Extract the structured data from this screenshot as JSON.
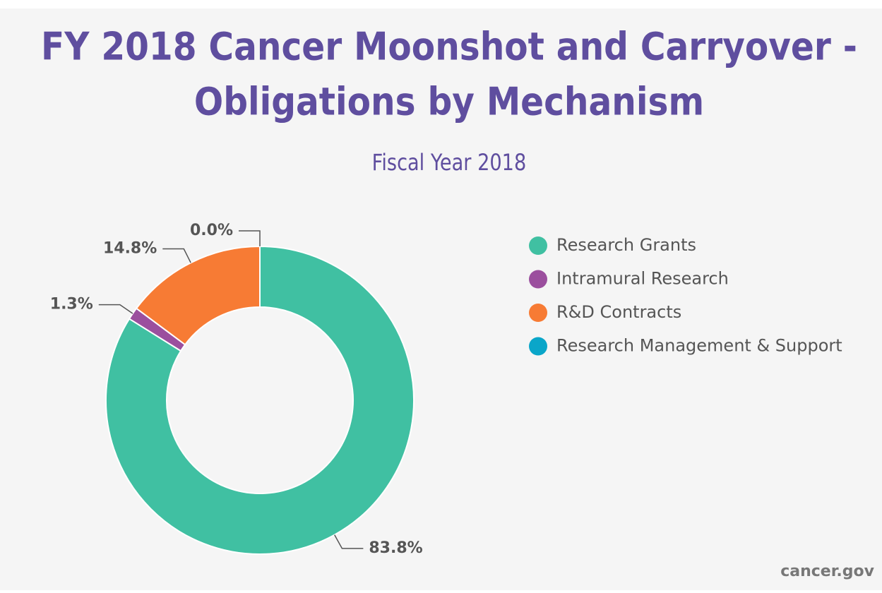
{
  "chart_data": {
    "type": "donut",
    "title": "FY 2018 Cancer Moonshot and Carryover - Obligations by Mechanism",
    "subtitle": "Fiscal Year 2018",
    "categories": [
      "Research Grants",
      "Intramural Research",
      "R&D Contracts",
      "Research Management & Support"
    ],
    "values": [
      83.8,
      1.3,
      14.8,
      0.0
    ],
    "value_labels": [
      "83.8%",
      "1.3%",
      "14.8%",
      "0.0%"
    ],
    "colors": [
      "#40c0a2",
      "#9b4f9e",
      "#f77b34",
      "#0aa6c9"
    ],
    "legend": "right",
    "source": "cancer.gov"
  }
}
